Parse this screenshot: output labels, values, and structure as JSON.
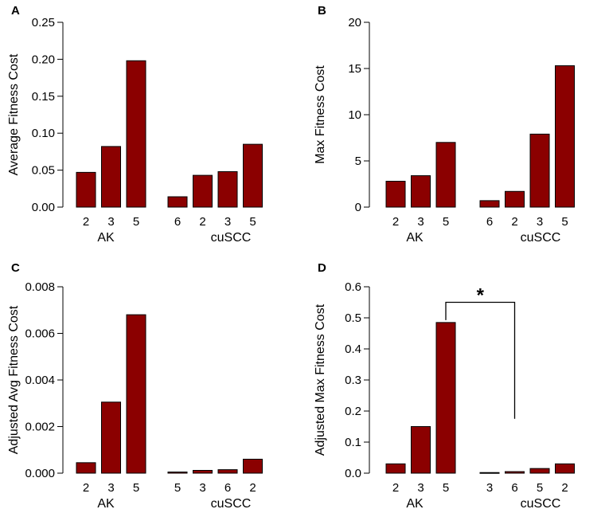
{
  "chart_data": [
    {
      "panel": "A",
      "type": "bar",
      "title": "",
      "ylabel": "Average Fitness Cost",
      "ylim": [
        0,
        0.25
      ],
      "yticks": [
        "0.00",
        "0.05",
        "0.10",
        "0.15",
        "0.20",
        "0.25"
      ],
      "grid": false,
      "groups": [
        {
          "name": "AK",
          "categories": [
            "2",
            "3",
            "5"
          ],
          "values": [
            0.047,
            0.082,
            0.198
          ]
        },
        {
          "name": "cuSCC",
          "categories": [
            "6",
            "2",
            "3",
            "5"
          ],
          "values": [
            0.014,
            0.043,
            0.048,
            0.085
          ]
        }
      ],
      "color": "#8b0000"
    },
    {
      "panel": "B",
      "type": "bar",
      "title": "",
      "ylabel": "Max Fitness Cost",
      "ylim": [
        0,
        20
      ],
      "yticks": [
        "0",
        "5",
        "10",
        "15",
        "20"
      ],
      "grid": false,
      "groups": [
        {
          "name": "AK",
          "categories": [
            "2",
            "3",
            "5"
          ],
          "values": [
            2.8,
            3.4,
            7.0
          ]
        },
        {
          "name": "cuSCC",
          "categories": [
            "6",
            "2",
            "3",
            "5"
          ],
          "values": [
            0.7,
            1.7,
            7.9,
            15.3
          ]
        }
      ],
      "color": "#8b0000"
    },
    {
      "panel": "C",
      "type": "bar",
      "title": "",
      "ylabel": "Adjusted Avg Fitness Cost",
      "ylim": [
        0,
        0.008
      ],
      "yticks": [
        "0.000",
        "0.002",
        "0.004",
        "0.006",
        "0.008"
      ],
      "grid": false,
      "groups": [
        {
          "name": "AK",
          "categories": [
            "2",
            "3",
            "5"
          ],
          "values": [
            0.00045,
            0.00305,
            0.0068
          ]
        },
        {
          "name": "cuSCC",
          "categories": [
            "5",
            "3",
            "6",
            "2"
          ],
          "values": [
            5e-05,
            0.00012,
            0.00015,
            0.0006
          ]
        }
      ],
      "color": "#8b0000"
    },
    {
      "panel": "D",
      "type": "bar",
      "title": "",
      "ylabel": "Adjusted Max Fitness Cost",
      "ylim": [
        0,
        0.6
      ],
      "yticks": [
        "0.0",
        "0.1",
        "0.2",
        "0.3",
        "0.4",
        "0.5",
        "0.6"
      ],
      "grid": false,
      "groups": [
        {
          "name": "AK",
          "categories": [
            "2",
            "3",
            "5"
          ],
          "values": [
            0.03,
            0.15,
            0.485
          ]
        },
        {
          "name": "cuSCC",
          "categories": [
            "3",
            "6",
            "5",
            "2"
          ],
          "values": [
            0.002,
            0.005,
            0.015,
            0.03
          ]
        }
      ],
      "color": "#8b0000",
      "annotation": {
        "text": "*",
        "from": {
          "group": "AK",
          "category": "5"
        },
        "to": {
          "group": "cuSCC",
          "category": "6"
        },
        "level": 0.55,
        "drop_to": 0.175
      }
    }
  ]
}
